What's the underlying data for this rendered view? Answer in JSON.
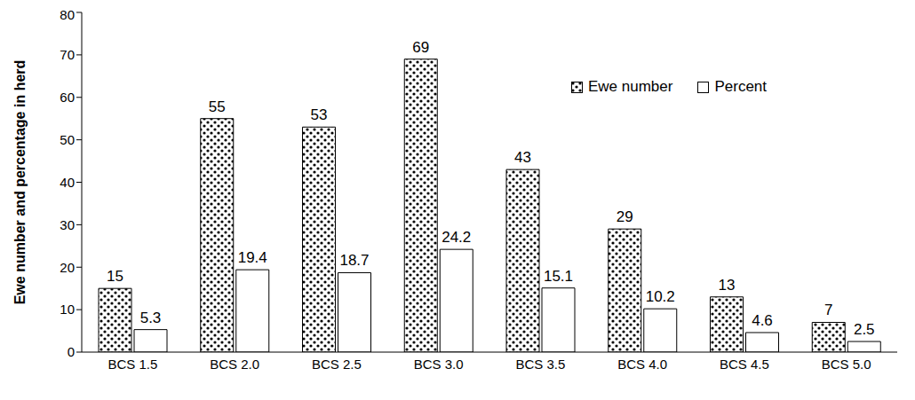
{
  "chart_data": {
    "type": "bar",
    "categories": [
      "BCS 1.5",
      "BCS 2.0",
      "BCS 2.5",
      "BCS 3.0",
      "BCS 3.5",
      "BCS 4.0",
      "BCS 4.5",
      "BCS 5.0"
    ],
    "series": [
      {
        "name": "Ewe number",
        "color": "#000000",
        "values": [
          15,
          55,
          53,
          69,
          43,
          29,
          13,
          7
        ]
      },
      {
        "name": "Percent",
        "color": "#ffffff",
        "values": [
          5.3,
          19.4,
          18.7,
          24.2,
          15.1,
          10.2,
          4.6,
          2.5
        ]
      }
    ],
    "y_label": "Ewe number and percentage in herd",
    "ylim": [
      0,
      80
    ],
    "yticks": [
      0,
      10,
      20,
      30,
      40,
      50,
      60,
      70,
      80
    ],
    "grid": false,
    "legend": "upper right",
    "data_labels": true
  }
}
